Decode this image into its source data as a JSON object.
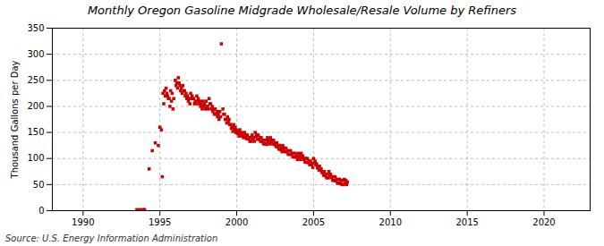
{
  "chart_data": {
    "type": "scatter",
    "title": "Monthly Oregon Gasoline Midgrade Wholesale/Resale Volume by Refiners",
    "ylabel": "Thousand Gallons per Day",
    "source": "Source: U.S. Energy Information Administration",
    "color": "#cc0000",
    "marker": "square",
    "grid": true,
    "xlim": [
      1988,
      2023
    ],
    "ylim": [
      0,
      350
    ],
    "xticks": [
      1990,
      1995,
      2000,
      2005,
      2010,
      2015,
      2020
    ],
    "yticks": [
      0,
      50,
      100,
      150,
      200,
      250,
      300,
      350
    ],
    "x": [
      1993.5,
      1993.7,
      1993.9,
      1994.0,
      1994.3,
      1994.5,
      1994.7,
      1994.9,
      1995.0,
      1995.1,
      1995.15,
      1995.2,
      1995.25,
      1995.3,
      1995.35,
      1995.4,
      1995.45,
      1995.5,
      1995.55,
      1995.6,
      1995.65,
      1995.7,
      1995.75,
      1995.8,
      1995.85,
      1995.9,
      1996.0,
      1996.05,
      1996.1,
      1996.15,
      1996.2,
      1996.25,
      1996.3,
      1996.35,
      1996.4,
      1996.45,
      1996.5,
      1996.55,
      1996.6,
      1996.65,
      1996.7,
      1996.75,
      1996.8,
      1996.85,
      1996.9,
      1996.95,
      1997.0,
      1997.05,
      1997.1,
      1997.15,
      1997.2,
      1997.25,
      1997.3,
      1997.35,
      1997.4,
      1997.45,
      1997.5,
      1997.55,
      1997.6,
      1997.65,
      1997.7,
      1997.75,
      1997.8,
      1997.85,
      1997.9,
      1997.95,
      1998.0,
      1998.05,
      1998.1,
      1998.15,
      1998.2,
      1998.25,
      1998.3,
      1998.35,
      1998.4,
      1998.45,
      1998.5,
      1998.55,
      1998.6,
      1998.65,
      1998.7,
      1998.75,
      1998.8,
      1998.85,
      1998.9,
      1998.95,
      1999.0,
      1999.1,
      1999.15,
      1999.2,
      1999.25,
      1999.3,
      1999.35,
      1999.4,
      1999.45,
      1999.5,
      1999.55,
      1999.6,
      1999.65,
      1999.7,
      1999.75,
      1999.8,
      1999.85,
      1999.9,
      1999.95,
      2000.0,
      2000.05,
      2000.1,
      2000.15,
      2000.2,
      2000.25,
      2000.3,
      2000.35,
      2000.4,
      2000.45,
      2000.5,
      2000.55,
      2000.6,
      2000.65,
      2000.7,
      2000.75,
      2000.8,
      2000.85,
      2000.9,
      2000.95,
      2001.0,
      2001.05,
      2001.1,
      2001.15,
      2001.2,
      2001.25,
      2001.3,
      2001.35,
      2001.4,
      2001.45,
      2001.5,
      2001.55,
      2001.6,
      2001.65,
      2001.7,
      2001.75,
      2001.8,
      2001.85,
      2001.9,
      2001.95,
      2002.0,
      2002.05,
      2002.1,
      2002.15,
      2002.2,
      2002.25,
      2002.3,
      2002.35,
      2002.4,
      2002.45,
      2002.5,
      2002.55,
      2002.6,
      2002.65,
      2002.7,
      2002.75,
      2002.8,
      2002.85,
      2002.9,
      2002.95,
      2003.0,
      2003.05,
      2003.1,
      2003.15,
      2003.2,
      2003.25,
      2003.3,
      2003.35,
      2003.4,
      2003.45,
      2003.5,
      2003.55,
      2003.6,
      2003.65,
      2003.7,
      2003.75,
      2003.8,
      2003.85,
      2003.9,
      2003.95,
      2004.0,
      2004.05,
      2004.1,
      2004.15,
      2004.2,
      2004.25,
      2004.3,
      2004.35,
      2004.4,
      2004.45,
      2004.5,
      2004.55,
      2004.6,
      2004.65,
      2004.7,
      2004.75,
      2004.8,
      2004.85,
      2004.9,
      2004.95,
      2005.0,
      2005.05,
      2005.1,
      2005.15,
      2005.2,
      2005.25,
      2005.3,
      2005.35,
      2005.4,
      2005.45,
      2005.5,
      2005.55,
      2005.6,
      2005.65,
      2005.7,
      2005.75,
      2005.8,
      2005.85,
      2005.9,
      2005.95,
      2006.0,
      2006.05,
      2006.1,
      2006.15,
      2006.2,
      2006.25,
      2006.3,
      2006.35,
      2006.4,
      2006.45,
      2006.5,
      2006.55,
      2006.6,
      2006.65,
      2006.7,
      2006.75,
      2006.8,
      2006.85,
      2006.9,
      2006.95,
      2007.0,
      2007.05,
      2007.1,
      2007.15,
      2007.2
    ],
    "values": [
      2,
      2,
      2,
      2,
      80,
      115,
      130,
      125,
      160,
      155,
      65,
      225,
      205,
      230,
      220,
      235,
      225,
      220,
      215,
      215,
      200,
      230,
      210,
      225,
      195,
      215,
      250,
      240,
      245,
      235,
      255,
      245,
      240,
      230,
      235,
      225,
      240,
      230,
      230,
      220,
      225,
      215,
      220,
      210,
      215,
      205,
      225,
      215,
      220,
      215,
      215,
      205,
      210,
      205,
      220,
      210,
      215,
      205,
      210,
      200,
      205,
      195,
      210,
      200,
      205,
      195,
      210,
      200,
      200,
      195,
      215,
      205,
      205,
      195,
      200,
      190,
      195,
      185,
      195,
      185,
      190,
      180,
      185,
      175,
      190,
      180,
      320,
      195,
      185,
      185,
      175,
      175,
      168,
      180,
      170,
      175,
      165,
      165,
      158,
      160,
      152,
      165,
      155,
      160,
      150,
      155,
      148,
      150,
      143,
      155,
      148,
      150,
      143,
      148,
      140,
      150,
      143,
      145,
      138,
      145,
      138,
      140,
      133,
      140,
      133,
      145,
      138,
      140,
      133,
      150,
      142,
      145,
      137,
      145,
      137,
      140,
      133,
      140,
      132,
      135,
      128,
      135,
      128,
      135,
      127,
      140,
      132,
      135,
      128,
      140,
      132,
      135,
      128,
      135,
      127,
      130,
      123,
      130,
      122,
      125,
      118,
      125,
      117,
      120,
      113,
      125,
      117,
      120,
      113,
      120,
      113,
      115,
      108,
      115,
      108,
      115,
      108,
      110,
      103,
      110,
      103,
      110,
      103,
      105,
      98,
      110,
      102,
      105,
      98,
      110,
      102,
      105,
      98,
      100,
      93,
      100,
      93,
      100,
      92,
      95,
      88,
      95,
      88,
      90,
      83,
      100,
      92,
      95,
      88,
      90,
      82,
      85,
      78,
      85,
      77,
      80,
      73,
      75,
      68,
      75,
      67,
      70,
      63,
      70,
      63,
      75,
      67,
      70,
      63,
      65,
      58,
      65,
      58,
      65,
      57,
      60,
      53,
      60,
      53,
      60,
      52,
      58,
      50,
      58,
      50,
      60,
      52,
      58,
      50,
      55
    ]
  }
}
